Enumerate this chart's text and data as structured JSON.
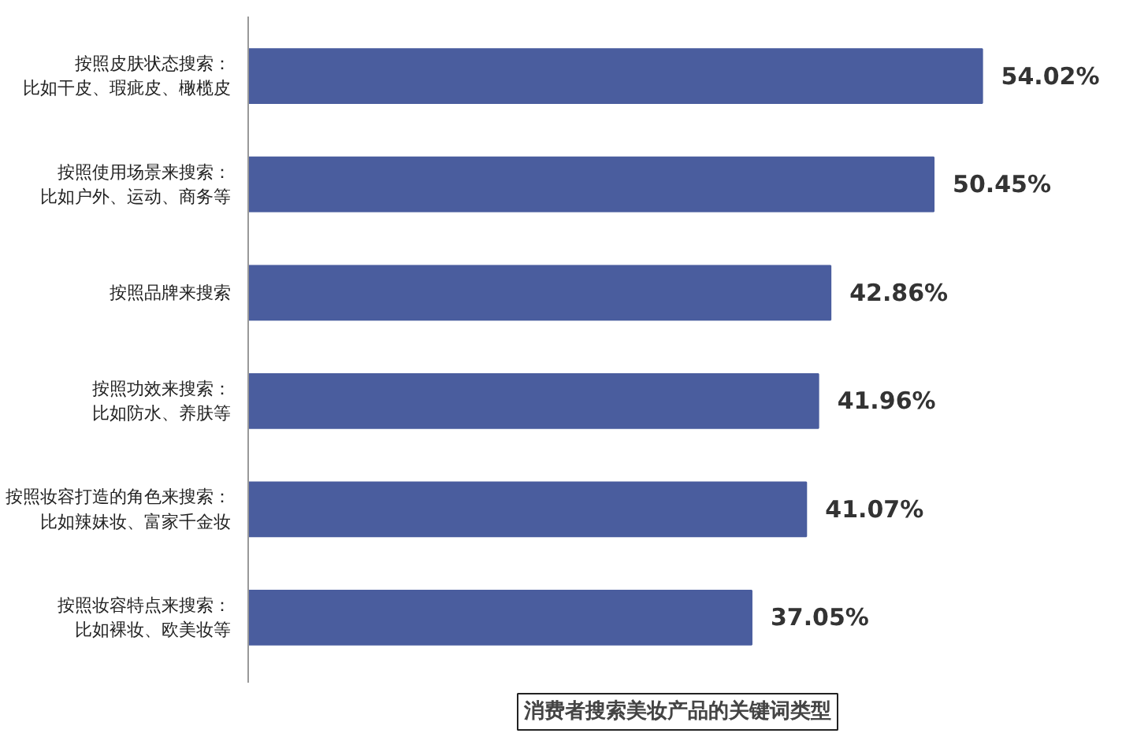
{
  "chart_data": {
    "type": "bar",
    "orientation": "horizontal",
    "title": "消费者搜索美妆产品的关键词类型",
    "categories": [
      "按照皮肤状态搜索：比如干皮、瑕疵皮、橄榄皮",
      "按照使用场景来搜索：比如户外、运动、商务等",
      "按照品牌来搜索",
      "按照功效来搜索：比如防水、养肤等",
      "按照妆容打造的角色来搜索：比如辣妹妆、富家千金妆",
      "按照妆容特点来搜索：比如裸妆、欧美妆等"
    ],
    "values": [
      54.02,
      50.45,
      42.86,
      41.96,
      41.07,
      37.05
    ],
    "value_labels": [
      "54.02%",
      "50.45%",
      "42.86%",
      "41.96%",
      "41.07%",
      "37.05%"
    ],
    "color": "#4a5d9e",
    "grid": false
  }
}
